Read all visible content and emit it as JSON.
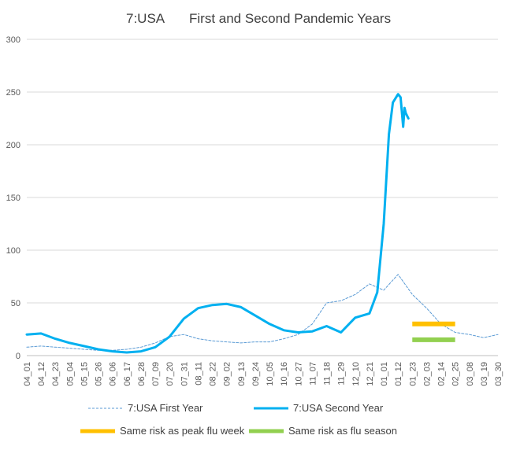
{
  "chart_data": {
    "type": "line",
    "title_left": "7:USA",
    "title_right": "First and Second Pandemic Years",
    "ylim": [
      0,
      300
    ],
    "yticks": [
      0,
      50,
      100,
      150,
      200,
      250,
      300
    ],
    "grid": true,
    "legend_position": "bottom",
    "categories": [
      "04_01",
      "04_12",
      "04_23",
      "05_04",
      "05_15",
      "05_26",
      "06_06",
      "06_17",
      "06_28",
      "07_09",
      "07_20",
      "07_31",
      "08_11",
      "08_22",
      "09_02",
      "09_13",
      "09_24",
      "10_05",
      "10_16",
      "10_27",
      "11_07",
      "11_18",
      "11_29",
      "12_10",
      "12_21",
      "01_01",
      "01_12",
      "01_23",
      "02_03",
      "02_14",
      "02_25",
      "03_08",
      "03_19",
      "03_30"
    ],
    "series": [
      {
        "name": "7:USA First Year",
        "color": "#5b9bd5",
        "style": "dashed",
        "values": [
          8,
          9,
          8,
          7,
          6,
          5,
          5,
          6,
          8,
          12,
          18,
          20,
          16,
          14,
          13,
          12,
          13,
          13,
          16,
          20,
          30,
          50,
          52,
          58,
          68,
          62,
          77,
          58,
          45,
          30,
          22,
          20,
          17,
          20
        ]
      },
      {
        "name": "7:USA Second Year",
        "color": "#00b0f0",
        "style": "solid",
        "x": [
          "04_01",
          "04_12",
          "04_23",
          "05_04",
          "05_15",
          "05_26",
          "06_06",
          "06_17",
          "06_28",
          "07_09",
          "07_20",
          "07_31",
          "08_11",
          "08_22",
          "09_02",
          "09_13",
          "09_24",
          "10_05",
          "10_16",
          "10_27",
          "11_07",
          "11_18",
          "11_29",
          "12_10",
          "12_21",
          "12_27",
          "01_01",
          "01_05",
          "01_08",
          "01_12",
          "01_14",
          "01_16",
          "01_17",
          "01_18",
          "01_20"
        ],
        "values": [
          20,
          21,
          16,
          12,
          9,
          6,
          4,
          3,
          4,
          8,
          18,
          35,
          45,
          48,
          49,
          46,
          38,
          30,
          24,
          22,
          23,
          28,
          22,
          36,
          40,
          60,
          125,
          210,
          240,
          248,
          245,
          217,
          235,
          230,
          225
        ]
      },
      {
        "name": "Same risk as peak flu week",
        "color": "#ffc000",
        "style": "bar",
        "start": "01_23",
        "end": "02_25",
        "value": 30
      },
      {
        "name": "Same risk as flu season",
        "color": "#92d050",
        "style": "bar",
        "start": "01_23",
        "end": "02_25",
        "value": 15
      }
    ]
  }
}
